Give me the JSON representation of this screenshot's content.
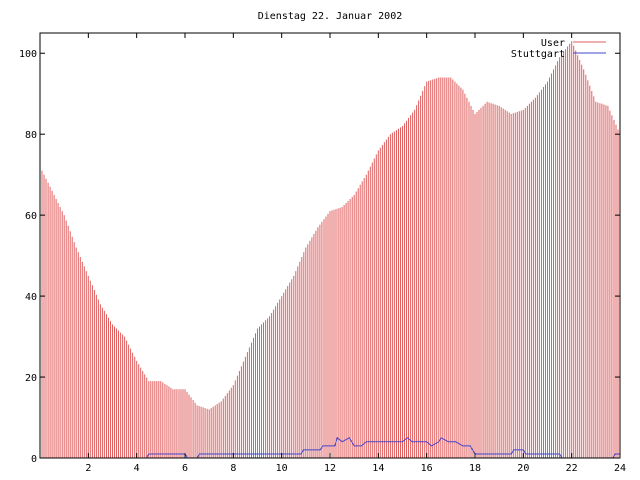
{
  "chart_data": {
    "type": "bar",
    "title": "Dienstag 22. Januar 2002",
    "xlabel": "",
    "ylabel": "",
    "xlim": [
      0,
      24
    ],
    "ylim": [
      0,
      105
    ],
    "x_ticks": [
      2,
      4,
      6,
      8,
      10,
      12,
      14,
      16,
      18,
      20,
      22,
      24
    ],
    "y_ticks": [
      0,
      20,
      40,
      60,
      80,
      100
    ],
    "legend_position": "top-right",
    "grid": false,
    "series": [
      {
        "name": "User",
        "color": "#e06060",
        "style": "impulses",
        "points": [
          [
            0.0,
            72
          ],
          [
            0.5,
            66
          ],
          [
            1.0,
            60
          ],
          [
            1.5,
            52
          ],
          [
            2.0,
            45
          ],
          [
            2.5,
            38
          ],
          [
            3.0,
            33
          ],
          [
            3.5,
            30
          ],
          [
            4.0,
            24
          ],
          [
            4.5,
            19
          ],
          [
            5.0,
            19
          ],
          [
            5.5,
            17
          ],
          [
            6.0,
            17
          ],
          [
            6.5,
            13
          ],
          [
            7.0,
            12
          ],
          [
            7.5,
            14
          ],
          [
            8.0,
            18
          ],
          [
            8.5,
            25
          ],
          [
            9.0,
            32
          ],
          [
            9.5,
            35
          ],
          [
            10.0,
            40
          ],
          [
            10.5,
            45
          ],
          [
            11.0,
            52
          ],
          [
            11.5,
            57
          ],
          [
            12.0,
            61
          ],
          [
            12.5,
            62
          ],
          [
            13.0,
            65
          ],
          [
            13.5,
            70
          ],
          [
            14.0,
            76
          ],
          [
            14.5,
            80
          ],
          [
            15.0,
            82
          ],
          [
            15.5,
            86
          ],
          [
            16.0,
            93
          ],
          [
            16.5,
            94
          ],
          [
            17.0,
            94
          ],
          [
            17.5,
            91
          ],
          [
            18.0,
            85
          ],
          [
            18.5,
            88
          ],
          [
            19.0,
            87
          ],
          [
            19.5,
            85
          ],
          [
            20.0,
            86
          ],
          [
            20.5,
            89
          ],
          [
            21.0,
            93
          ],
          [
            21.5,
            99
          ],
          [
            22.0,
            103
          ],
          [
            22.5,
            96
          ],
          [
            23.0,
            88
          ],
          [
            23.5,
            87
          ],
          [
            24.0,
            80
          ]
        ]
      },
      {
        "name": "Stuttgart",
        "color": "#4444cc",
        "style": "line",
        "points": [
          [
            0.0,
            0
          ],
          [
            4.4,
            0
          ],
          [
            4.5,
            1
          ],
          [
            6.0,
            1
          ],
          [
            6.1,
            0
          ],
          [
            6.5,
            0
          ],
          [
            6.6,
            1
          ],
          [
            10.8,
            1
          ],
          [
            10.9,
            2
          ],
          [
            11.6,
            2
          ],
          [
            11.7,
            3
          ],
          [
            12.2,
            3
          ],
          [
            12.3,
            5
          ],
          [
            12.5,
            4
          ],
          [
            12.8,
            5
          ],
          [
            13.0,
            3
          ],
          [
            13.3,
            3
          ],
          [
            13.5,
            4
          ],
          [
            15.0,
            4
          ],
          [
            15.2,
            5
          ],
          [
            15.4,
            4
          ],
          [
            16.0,
            4
          ],
          [
            16.2,
            3
          ],
          [
            16.5,
            4
          ],
          [
            16.6,
            5
          ],
          [
            16.9,
            4
          ],
          [
            17.2,
            4
          ],
          [
            17.5,
            3
          ],
          [
            17.8,
            3
          ],
          [
            18.0,
            1
          ],
          [
            19.5,
            1
          ],
          [
            19.6,
            2
          ],
          [
            20.0,
            2
          ],
          [
            20.1,
            1
          ],
          [
            21.5,
            1
          ],
          [
            21.6,
            0
          ],
          [
            23.7,
            0
          ],
          [
            23.8,
            1
          ],
          [
            24.0,
            1
          ]
        ]
      }
    ]
  }
}
